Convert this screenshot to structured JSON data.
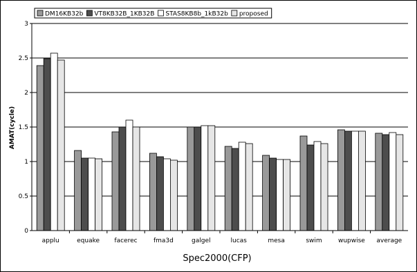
{
  "chart_data": {
    "type": "bar",
    "title": "",
    "xlabel": "Spec2000(CFP)",
    "ylabel": "AMAT(cycle)",
    "ylim": [
      0,
      3
    ],
    "yticks": [
      "0",
      "0.5",
      "1",
      "1.5",
      "2",
      "2.5",
      "3"
    ],
    "grid": true,
    "legend_position": "top-left",
    "categories": [
      "applu",
      "equake",
      "facerec",
      "fma3d",
      "galgel",
      "lucas",
      "mesa",
      "swim",
      "wupwise",
      "average"
    ],
    "series": [
      {
        "name": "DM16KB32b",
        "color": "#999999",
        "values": [
          2.39,
          1.16,
          1.43,
          1.12,
          1.5,
          1.22,
          1.09,
          1.37,
          1.46,
          1.41
        ]
      },
      {
        "name": "VT8KB32B_1KB32B",
        "color": "#4d4d4d",
        "values": [
          2.49,
          1.05,
          1.5,
          1.07,
          1.5,
          1.19,
          1.05,
          1.24,
          1.44,
          1.39
        ]
      },
      {
        "name": "STAS8KB8b_1kB32b",
        "color": "#ffffff",
        "values": [
          2.57,
          1.05,
          1.6,
          1.04,
          1.52,
          1.28,
          1.03,
          1.29,
          1.44,
          1.42
        ]
      },
      {
        "name": "proposed",
        "color": "#e6e6e6",
        "values": [
          2.47,
          1.04,
          1.5,
          1.02,
          1.52,
          1.26,
          1.03,
          1.26,
          1.44,
          1.39
        ]
      }
    ]
  }
}
